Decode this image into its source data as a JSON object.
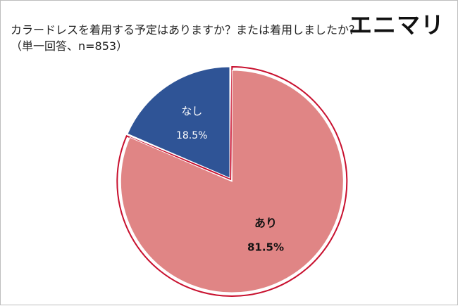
{
  "title_line1": "カラードレスを着用する予定はありますか？または着用しましたか？",
  "title_line2": "（単一回答、n=853）",
  "logo": "エニマリ",
  "chart_data": {
    "type": "pie",
    "title": "カラードレスを着用する予定はありますか？または着用しましたか？（単一回答、n=853）",
    "slices": [
      {
        "label": "あり",
        "value": 81.5,
        "value_label": "81.5%",
        "color": "#e08585",
        "exploded": true
      },
      {
        "label": "なし",
        "value": 18.5,
        "value_label": "18.5%",
        "color": "#2f5496",
        "exploded": false
      }
    ],
    "start_angle_deg": 0,
    "direction": "clockwise",
    "legend": "none"
  }
}
